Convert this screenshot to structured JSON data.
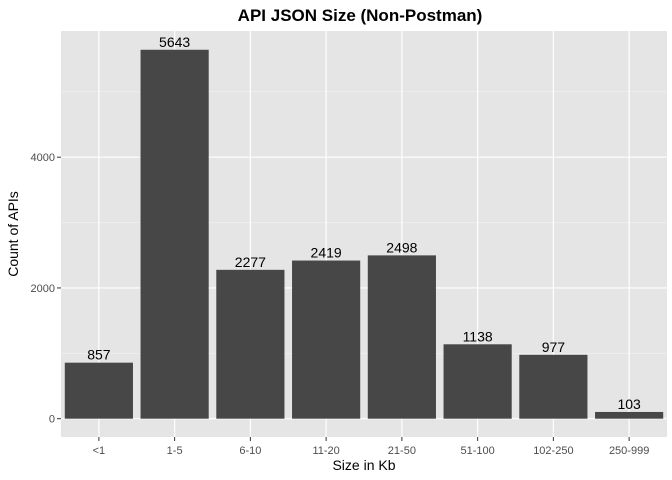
{
  "chart_data": {
    "type": "bar",
    "title": "API JSON Size (Non-Postman)",
    "xlabel": "Size in Kb",
    "ylabel": "Count of APIs",
    "categories": [
      "<1",
      "1-5",
      "6-10",
      "11-20",
      "21-50",
      "51-100",
      "102-250",
      "250-999"
    ],
    "values": [
      857,
      5643,
      2277,
      2419,
      2498,
      1138,
      977,
      103
    ],
    "ylim": [
      -280,
      5930
    ],
    "yticks": [
      0,
      2000,
      4000
    ],
    "ytick_labels": [
      "0",
      "2000",
      "4000"
    ],
    "grid": true,
    "legend": "none",
    "colors": {
      "panel": "#e5e5e5",
      "grid_major": "#ffffff",
      "grid_minor": "#f2f2f2",
      "bar": "#474747",
      "tick": "#333333"
    }
  }
}
